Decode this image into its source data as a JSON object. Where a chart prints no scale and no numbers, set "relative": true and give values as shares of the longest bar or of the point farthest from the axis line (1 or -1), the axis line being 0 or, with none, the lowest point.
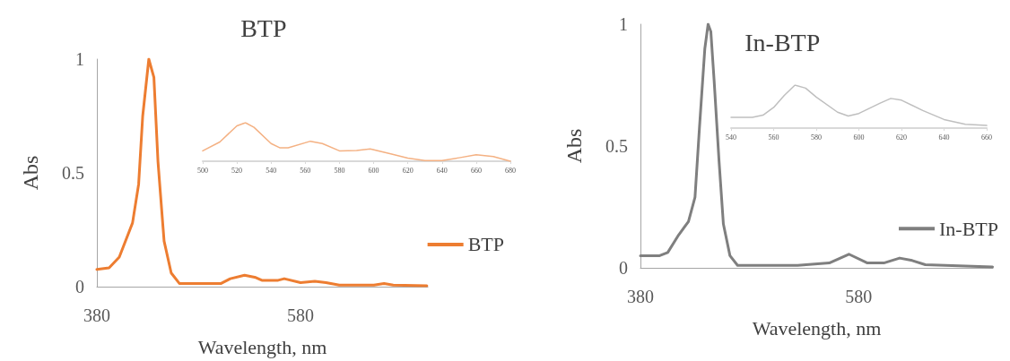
{
  "chart_data": [
    {
      "type": "line",
      "title": "BTP",
      "xlabel": "Wavelength, nm",
      "ylabel": "Abs",
      "legend": "right",
      "xlim": [
        380,
        705
      ],
      "xticks": [
        380,
        580
      ],
      "ylim": [
        0,
        1
      ],
      "yticks": [
        0,
        0.5,
        1
      ],
      "x": [
        380,
        392,
        402,
        415,
        421,
        425,
        431,
        436,
        440,
        446,
        453,
        461,
        502,
        511,
        525,
        536,
        542,
        558,
        564,
        580,
        594,
        605,
        618,
        652,
        662,
        671,
        704
      ],
      "series": [
        {
          "name": "BTP",
          "color": "#ed7d31",
          "values": [
            0.076,
            0.083,
            0.13,
            0.28,
            0.45,
            0.75,
            1.0,
            0.92,
            0.55,
            0.2,
            0.06,
            0.014,
            0.014,
            0.035,
            0.05,
            0.04,
            0.028,
            0.028,
            0.035,
            0.018,
            0.024,
            0.018,
            0.007,
            0.007,
            0.014,
            0.007,
            0.004
          ]
        }
      ]
    },
    {
      "type": "line",
      "relative": true,
      "xlim": [
        500,
        680
      ],
      "xticks": [
        500,
        520,
        540,
        560,
        580,
        600,
        620,
        640,
        660,
        680
      ],
      "x": [
        500,
        510,
        520,
        525,
        530,
        540,
        545,
        550,
        563,
        570,
        580,
        590,
        598,
        610,
        620,
        630,
        640,
        650,
        660,
        670,
        680
      ],
      "series": [
        {
          "color": "#f4b183",
          "values": [
            0.27,
            0.5,
            0.92,
            1,
            0.88,
            0.46,
            0.35,
            0.35,
            0.52,
            0.46,
            0.27,
            0.28,
            0.32,
            0.19,
            0.08,
            0.015,
            0.015,
            0.09,
            0.17,
            0.12,
            0
          ]
        }
      ]
    },
    {
      "type": "line",
      "title": "In-BTP",
      "xlabel": "Wavelength, nm",
      "ylabel": "Abs",
      "legend": "right",
      "xlim": [
        380,
        703
      ],
      "xticks": [
        380,
        580
      ],
      "ylim": [
        0,
        1
      ],
      "yticks": [
        0,
        0.5,
        1
      ],
      "x": [
        380,
        397.6,
        405,
        415,
        424,
        430,
        434,
        439,
        442,
        444.5,
        447.5,
        452,
        456,
        462,
        469,
        524,
        553,
        571,
        588,
        603,
        617.5,
        629,
        641,
        702.6
      ],
      "series": [
        {
          "name": "In-BTP",
          "color": "#7f7f7f",
          "values": [
            0.05,
            0.05,
            0.063,
            0.135,
            0.19,
            0.29,
            0.57,
            0.9,
            1.0,
            0.97,
            0.77,
            0.44,
            0.18,
            0.05,
            0.01,
            0.01,
            0.02,
            0.056,
            0.02,
            0.02,
            0.04,
            0.03,
            0.013,
            0.004
          ]
        }
      ]
    },
    {
      "type": "line",
      "relative": true,
      "xlim": [
        540,
        660
      ],
      "xticks": [
        540,
        560,
        580,
        600,
        620,
        640,
        660
      ],
      "x": [
        540,
        550,
        555,
        560,
        565,
        570,
        575,
        580,
        590,
        595,
        600,
        610,
        615,
        620,
        630,
        640,
        650,
        660
      ],
      "series": [
        {
          "color": "#bfbfbf",
          "values": [
            0.25,
            0.25,
            0.3,
            0.48,
            0.76,
            1,
            0.93,
            0.72,
            0.37,
            0.28,
            0.34,
            0.58,
            0.69,
            0.65,
            0.41,
            0.2,
            0.09,
            0.06
          ]
        }
      ]
    }
  ]
}
